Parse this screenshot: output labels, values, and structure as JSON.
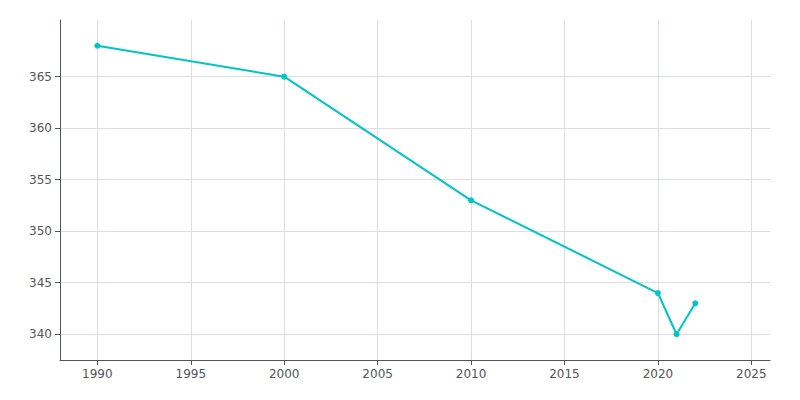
{
  "chart_data": {
    "type": "line",
    "x": [
      1990,
      2000,
      2010,
      2020,
      2021,
      2022
    ],
    "values": [
      368,
      365,
      353,
      344,
      340,
      343
    ],
    "color": "#00C5C5",
    "marker": "circle",
    "xlim": [
      1988,
      2026
    ],
    "ylim": [
      337.5,
      370.5
    ],
    "xticks": [
      1990,
      1995,
      2000,
      2005,
      2010,
      2015,
      2020,
      2025
    ],
    "yticks": [
      340,
      345,
      350,
      355,
      360,
      365
    ],
    "grid": true
  }
}
